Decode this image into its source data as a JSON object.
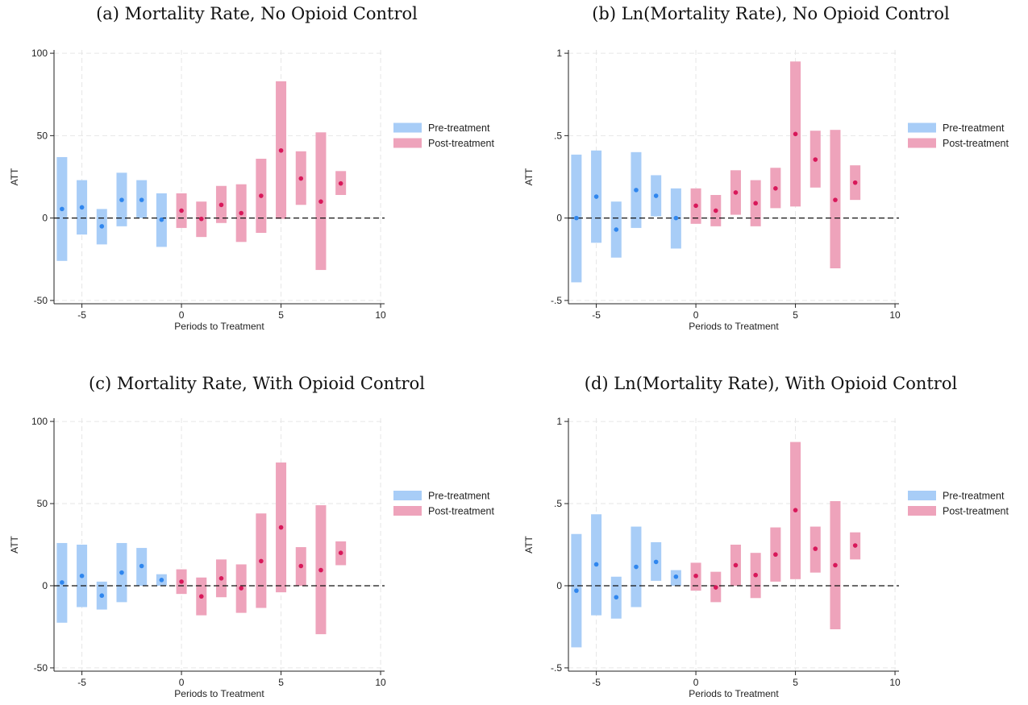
{
  "colors": {
    "pre": "#a8cdf7",
    "pre_point": "#2f86ee",
    "post": "#eea3bb",
    "post_point": "#d8185a",
    "zero_line": "#111111",
    "grid": "#e6e6e6"
  },
  "legend": {
    "pre": "Pre-treatment",
    "post": "Post-treatment"
  },
  "chart_data": [
    {
      "type": "bar",
      "title": "(a) Mortality Rate, No Opioid Control",
      "xlabel": "Periods to Treatment",
      "ylabel": "ATT",
      "xlim": [
        -6.4,
        10.2
      ],
      "ylim": [
        -52,
        102
      ],
      "xticks": [
        -5,
        0,
        5,
        10
      ],
      "yticks": [
        -50,
        0,
        50,
        100
      ],
      "ytick_labels": [
        "-50",
        "0",
        "50",
        "100"
      ],
      "grid": true,
      "legend_position": "right",
      "reference_line": 0,
      "series": [
        {
          "name": "Pre-treatment",
          "x": [
            -6,
            -5,
            -4,
            -3,
            -2,
            -1
          ],
          "estimate": [
            5.5,
            6.5,
            -5.0,
            11.0,
            11.0,
            -1.0
          ],
          "lower": [
            -26.0,
            -10.0,
            -16.0,
            -5.0,
            0.0,
            -17.5
          ],
          "upper": [
            37.0,
            23.0,
            5.5,
            27.5,
            23.0,
            15.0
          ]
        },
        {
          "name": "Post-treatment",
          "x": [
            0,
            1,
            2,
            3,
            4,
            5,
            6,
            7,
            8
          ],
          "estimate": [
            4.5,
            -0.5,
            8.0,
            3.0,
            13.5,
            41.0,
            24.0,
            10.0,
            21.0
          ],
          "lower": [
            -6.0,
            -11.5,
            -3.0,
            -14.5,
            -9.0,
            -0.5,
            8.0,
            -31.5,
            14.0
          ],
          "upper": [
            15.0,
            10.0,
            19.5,
            20.5,
            36.0,
            83.0,
            40.5,
            52.0,
            28.5
          ]
        }
      ]
    },
    {
      "type": "bar",
      "title": "(b) Ln(Mortality Rate), No Opioid Control",
      "xlabel": "Periods to Treatment",
      "ylabel": "ATT",
      "xlim": [
        -6.4,
        10.2
      ],
      "ylim": [
        -0.52,
        1.02
      ],
      "xticks": [
        -5,
        0,
        5,
        10
      ],
      "yticks": [
        -0.5,
        0,
        0.5,
        1
      ],
      "ytick_labels": [
        "-.5",
        "0",
        ".5",
        "1"
      ],
      "grid": true,
      "legend_position": "right",
      "reference_line": 0,
      "series": [
        {
          "name": "Pre-treatment",
          "x": [
            -6,
            -5,
            -4,
            -3,
            -2,
            -1
          ],
          "estimate": [
            0.0,
            0.13,
            -0.07,
            0.17,
            0.135,
            0.0
          ],
          "lower": [
            -0.39,
            -0.15,
            -0.24,
            -0.06,
            0.01,
            -0.185
          ],
          "upper": [
            0.385,
            0.41,
            0.1,
            0.4,
            0.26,
            0.18
          ]
        },
        {
          "name": "Post-treatment",
          "x": [
            0,
            1,
            2,
            3,
            4,
            5,
            6,
            7,
            8
          ],
          "estimate": [
            0.075,
            0.045,
            0.155,
            0.09,
            0.18,
            0.51,
            0.355,
            0.11,
            0.215
          ],
          "lower": [
            -0.035,
            -0.05,
            0.02,
            -0.05,
            0.06,
            0.07,
            0.185,
            -0.305,
            0.11
          ],
          "upper": [
            0.18,
            0.14,
            0.29,
            0.23,
            0.305,
            0.95,
            0.53,
            0.535,
            0.32
          ]
        }
      ]
    },
    {
      "type": "bar",
      "title": "(c) Mortality Rate, With Opioid Control",
      "xlabel": "Periods to Treatment",
      "ylabel": "ATT",
      "xlim": [
        -6.4,
        10.2
      ],
      "ylim": [
        -52,
        102
      ],
      "xticks": [
        -5,
        0,
        5,
        10
      ],
      "yticks": [
        -50,
        0,
        50,
        100
      ],
      "ytick_labels": [
        "-50",
        "0",
        "50",
        "100"
      ],
      "grid": true,
      "legend_position": "right",
      "reference_line": 0,
      "series": [
        {
          "name": "Pre-treatment",
          "x": [
            -6,
            -5,
            -4,
            -3,
            -2,
            -1
          ],
          "estimate": [
            2.0,
            6.0,
            -6.0,
            8.0,
            12.0,
            3.5
          ],
          "lower": [
            -22.5,
            -13.0,
            -14.5,
            -10.0,
            0.0,
            0.0
          ],
          "upper": [
            26.0,
            25.0,
            2.5,
            26.0,
            23.0,
            7.0
          ]
        },
        {
          "name": "Post-treatment",
          "x": [
            0,
            1,
            2,
            3,
            4,
            5,
            6,
            7,
            8
          ],
          "estimate": [
            2.5,
            -6.5,
            4.5,
            -1.5,
            15.0,
            35.5,
            12.0,
            9.5,
            20.0
          ],
          "lower": [
            -5.0,
            -18.0,
            -7.0,
            -16.5,
            -13.5,
            -4.0,
            0.0,
            -29.5,
            12.5
          ],
          "upper": [
            10.0,
            5.0,
            16.0,
            13.0,
            44.0,
            75.0,
            23.5,
            49.0,
            27.0
          ]
        }
      ]
    },
    {
      "type": "bar",
      "title": "(d) Ln(Mortality Rate), With Opioid Control",
      "xlabel": "Periods to Treatment",
      "ylabel": "ATT",
      "xlim": [
        -6.4,
        10.2
      ],
      "ylim": [
        -0.52,
        1.02
      ],
      "xticks": [
        -5,
        0,
        5,
        10
      ],
      "yticks": [
        -0.5,
        0,
        0.5,
        1
      ],
      "ytick_labels": [
        "-.5",
        "0",
        ".5",
        "1"
      ],
      "grid": true,
      "legend_position": "right",
      "reference_line": 0,
      "series": [
        {
          "name": "Pre-treatment",
          "x": [
            -6,
            -5,
            -4,
            -3,
            -2,
            -1
          ],
          "estimate": [
            -0.03,
            0.13,
            -0.07,
            0.115,
            0.145,
            0.055
          ],
          "lower": [
            -0.375,
            -0.18,
            -0.2,
            -0.13,
            0.03,
            0.0
          ],
          "upper": [
            0.315,
            0.435,
            0.055,
            0.36,
            0.265,
            0.095
          ]
        },
        {
          "name": "Post-treatment",
          "x": [
            0,
            1,
            2,
            3,
            4,
            5,
            6,
            7,
            8
          ],
          "estimate": [
            0.06,
            -0.01,
            0.125,
            0.065,
            0.19,
            0.46,
            0.225,
            0.125,
            0.245
          ],
          "lower": [
            -0.03,
            -0.1,
            0.0,
            -0.075,
            0.025,
            0.04,
            0.08,
            -0.265,
            0.16
          ],
          "upper": [
            0.14,
            0.085,
            0.25,
            0.2,
            0.355,
            0.875,
            0.36,
            0.515,
            0.325
          ]
        }
      ]
    }
  ]
}
